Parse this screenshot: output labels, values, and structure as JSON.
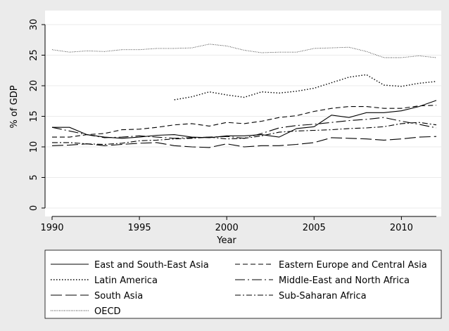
{
  "chart_data": {
    "type": "line",
    "xlabel": "Year",
    "ylabel": "% of GDP",
    "xlim": [
      1990,
      2012
    ],
    "ylim": [
      0,
      30
    ],
    "xticks": [
      1990,
      1995,
      2000,
      2005,
      2010
    ],
    "yticks": [
      0,
      5,
      10,
      15,
      20,
      25,
      30
    ],
    "grid": "horizontal",
    "legend_position": "bottom",
    "series": [
      {
        "name": "East and South-East Asia",
        "style": "solid",
        "x": [
          1990,
          1991,
          1992,
          1993,
          1994,
          1995,
          1996,
          1997,
          1998,
          1999,
          2000,
          2001,
          2002,
          2003,
          2004,
          2005,
          2006,
          2007,
          2008,
          2009,
          2010,
          2011,
          2012
        ],
        "values": [
          13.2,
          13.2,
          12.0,
          11.6,
          11.4,
          11.6,
          11.9,
          12.0,
          11.6,
          11.5,
          11.8,
          11.8,
          12.0,
          11.6,
          13.0,
          13.3,
          15.2,
          14.8,
          15.6,
          15.6,
          15.9,
          16.6,
          17.6
        ]
      },
      {
        "name": "Eastern Europe and Central Asia",
        "style": "dashed",
        "x": [
          1990,
          1991,
          1992,
          1993,
          1994,
          1995,
          1996,
          1997,
          1998,
          1999,
          2000,
          2001,
          2002,
          2003,
          2004,
          2005,
          2006,
          2007,
          2008,
          2009,
          2010,
          2011,
          2012
        ],
        "values": [
          11.6,
          11.6,
          12.0,
          12.2,
          12.8,
          12.9,
          13.2,
          13.6,
          13.8,
          13.4,
          14.0,
          13.8,
          14.2,
          14.8,
          15.1,
          15.8,
          16.3,
          16.6,
          16.6,
          16.3,
          16.3,
          16.7,
          16.8
        ]
      },
      {
        "name": "Latin America",
        "style": "dotted",
        "x": [
          1997,
          1998,
          1999,
          2000,
          2001,
          2002,
          2003,
          2004,
          2005,
          2006,
          2007,
          2008,
          2009,
          2010,
          2011,
          2012
        ],
        "values": [
          17.7,
          18.2,
          19.0,
          18.5,
          18.1,
          19.0,
          18.8,
          19.1,
          19.6,
          20.5,
          21.4,
          21.8,
          20.1,
          19.9,
          20.4,
          20.7
        ]
      },
      {
        "name": "Middle-East and North Africa",
        "style": "longdash-dot",
        "x": [
          1990,
          1991,
          1992,
          1993,
          1994,
          1995,
          1996,
          1997,
          1998,
          1999,
          2000,
          2001,
          2002,
          2003,
          2004,
          2005,
          2006,
          2007,
          2008,
          2009,
          2010,
          2011,
          2012
        ],
        "values": [
          13.2,
          12.6,
          12.0,
          11.5,
          11.6,
          11.8,
          11.6,
          11.4,
          11.5,
          11.6,
          11.7,
          11.4,
          12.2,
          13.1,
          13.5,
          13.7,
          14.0,
          14.3,
          14.5,
          14.8,
          14.2,
          13.7,
          13.1
        ]
      },
      {
        "name": "South Asia",
        "style": "longdash",
        "x": [
          1990,
          1991,
          1992,
          1993,
          1994,
          1995,
          1996,
          1997,
          1998,
          1999,
          2000,
          2001,
          2002,
          2003,
          2004,
          2005,
          2006,
          2007,
          2008,
          2009,
          2010,
          2011,
          2012
        ],
        "values": [
          10.2,
          10.3,
          10.5,
          10.2,
          10.4,
          10.6,
          10.7,
          10.2,
          10.0,
          9.9,
          10.5,
          10.0,
          10.2,
          10.2,
          10.4,
          10.7,
          11.5,
          11.4,
          11.3,
          11.1,
          11.3,
          11.6,
          11.7
        ]
      },
      {
        "name": "Sub-Saharan Africa",
        "style": "dashdot",
        "x": [
          1990,
          1991,
          1992,
          1993,
          1994,
          1995,
          1996,
          1997,
          1998,
          1999,
          2000,
          2001,
          2002,
          2003,
          2004,
          2005,
          2006,
          2007,
          2008,
          2009,
          2010,
          2011,
          2012
        ],
        "values": [
          10.7,
          10.7,
          10.5,
          10.4,
          10.6,
          11.0,
          11.1,
          11.3,
          11.4,
          11.6,
          11.3,
          11.4,
          11.8,
          12.4,
          12.6,
          12.7,
          12.8,
          13.0,
          13.1,
          13.3,
          13.8,
          14.0,
          13.6
        ]
      },
      {
        "name": "OECD",
        "style": "finedotted",
        "x": [
          1990,
          1991,
          1992,
          1993,
          1994,
          1995,
          1996,
          1997,
          1998,
          1999,
          2000,
          2001,
          2002,
          2003,
          2004,
          2005,
          2006,
          2007,
          2008,
          2009,
          2010,
          2011,
          2012
        ],
        "values": [
          25.9,
          25.5,
          25.7,
          25.6,
          25.9,
          25.9,
          26.1,
          26.1,
          26.2,
          26.8,
          26.5,
          25.8,
          25.4,
          25.5,
          25.5,
          26.1,
          26.2,
          26.3,
          25.6,
          24.6,
          24.6,
          24.9,
          24.6
        ]
      }
    ]
  }
}
